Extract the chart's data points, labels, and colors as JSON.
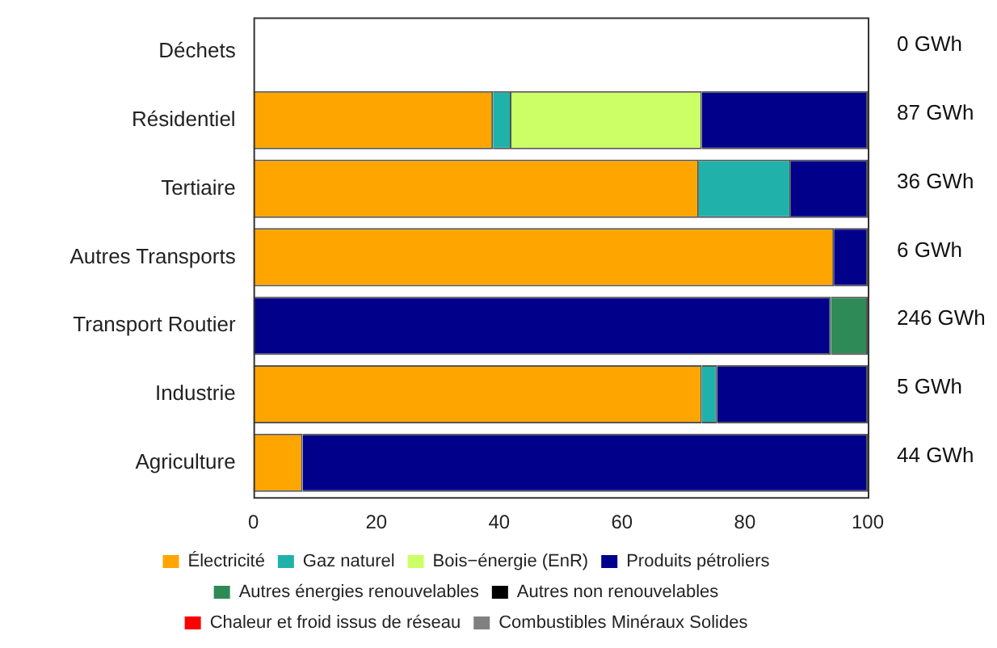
{
  "chart_data": {
    "type": "bar",
    "orientation": "horizontal",
    "stacked": true,
    "categories": [
      "Déchets",
      "Résidentiel",
      "Tertiaire",
      "Autres Transports",
      "Transport Routier",
      "Industrie",
      "Agriculture"
    ],
    "series": [
      {
        "name": "Électricité",
        "color": "#ffa500",
        "values": [
          0,
          39,
          72.5,
          94.5,
          0,
          73,
          8
        ]
      },
      {
        "name": "Gaz naturel",
        "color": "#20b2aa",
        "values": [
          0,
          3,
          15,
          0,
          0,
          2.5,
          0
        ]
      },
      {
        "name": "Bois−énergie (EnR)",
        "color": "#ccff66",
        "values": [
          0,
          31,
          0,
          0,
          0,
          0,
          0
        ]
      },
      {
        "name": "Produits pétroliers",
        "color": "#00008b",
        "values": [
          0,
          27,
          12.5,
          5.5,
          94,
          24.5,
          92
        ]
      },
      {
        "name": "Autres énergies renouvelables",
        "color": "#2e8b57",
        "values": [
          0,
          0,
          0,
          0,
          6,
          0,
          0
        ]
      },
      {
        "name": "Autres non renouvelables",
        "color": "#000000",
        "values": [
          0,
          0,
          0,
          0,
          0,
          0,
          0
        ]
      },
      {
        "name": "Chaleur et froid issus de réseau",
        "color": "#ff0000",
        "values": [
          0,
          0,
          0,
          0,
          0,
          0,
          0
        ]
      },
      {
        "name": "Combustibles Minéraux Solides",
        "color": "#808080",
        "values": [
          0,
          0,
          0,
          0,
          0,
          0,
          0
        ]
      }
    ],
    "xlim": [
      0,
      100
    ],
    "xticks": [
      0,
      20,
      40,
      60,
      80,
      100
    ],
    "grid": false,
    "legend": "bottom",
    "annotations": [
      "0 GWh",
      "87 GWh",
      "36 GWh",
      "6 GWh",
      "246 GWh",
      "5 GWh",
      "44 GWh"
    ]
  }
}
